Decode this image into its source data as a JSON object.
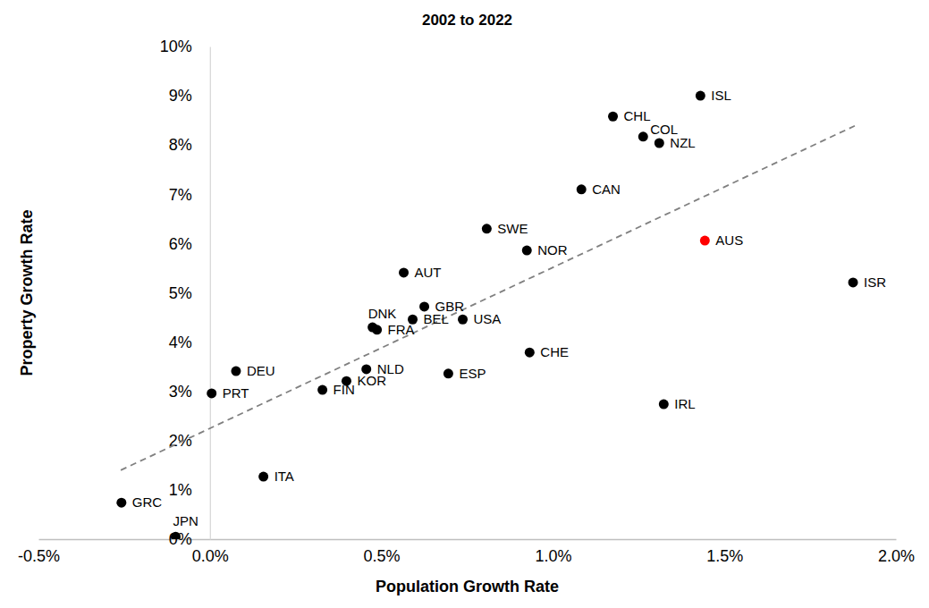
{
  "chart_data": {
    "type": "scatter",
    "title": "2002 to 2022",
    "x_label": "Population Growth Rate",
    "y_label": "Property Growth Rate",
    "labels": [
      "ISL",
      "CHL",
      "COL",
      "NZL",
      "CAN",
      "SWE",
      "NOR",
      "AUS",
      "AUT",
      "GBR",
      "DNK",
      "FRA",
      "BEL",
      "USA",
      "ISR",
      "CHE",
      "ESP",
      "NLD",
      "KOR",
      "FIN",
      "DEU",
      "PRT",
      "IRL",
      "ITA",
      "GRC",
      "JPN"
    ],
    "x": [
      1.43,
      1.175,
      1.263,
      1.31,
      1.083,
      0.807,
      0.924,
      1.443,
      0.565,
      0.625,
      0.474,
      0.487,
      0.591,
      0.737,
      1.875,
      0.932,
      0.695,
      0.456,
      0.398,
      0.328,
      0.076,
      0.005,
      1.323,
      0.156,
      -0.258,
      -0.1
    ],
    "values": [
      9.0,
      8.58,
      8.17,
      8.04,
      7.1,
      6.3,
      5.86,
      6.06,
      5.41,
      4.72,
      4.3,
      4.25,
      4.46,
      4.46,
      5.21,
      3.79,
      3.36,
      3.45,
      3.21,
      3.03,
      3.41,
      2.96,
      2.74,
      1.27,
      0.74,
      0.05
    ],
    "colors": [
      "#000000",
      "#000000",
      "#000000",
      "#000000",
      "#000000",
      "#000000",
      "#000000",
      "#ff0000",
      "#000000",
      "#000000",
      "#000000",
      "#000000",
      "#000000",
      "#000000",
      "#000000",
      "#000000",
      "#000000",
      "#000000",
      "#000000",
      "#000000",
      "#000000",
      "#000000",
      "#000000",
      "#000000",
      "#000000",
      "#000000"
    ],
    "marker": "circle",
    "trend_line": {
      "x": [
        -0.26,
        1.88
      ],
      "values": [
        1.4,
        8.39
      ],
      "color": "#808080",
      "line_style": "dashed"
    },
    "xlim": [
      -0.5,
      2.0
    ],
    "xticks": [
      {
        "value": -0.5,
        "label": "-0.5%"
      },
      {
        "value": 0,
        "label": "0.0%"
      },
      {
        "value": 0.5,
        "label": "0.5%"
      },
      {
        "value": 1.0,
        "label": "1.0%"
      },
      {
        "value": 1.5,
        "label": "1.5%"
      },
      {
        "value": 2.0,
        "label": "2.0%"
      }
    ],
    "ylim": [
      0,
      10
    ],
    "yticks": [
      {
        "value": 0,
        "label": "0%"
      },
      {
        "value": 1,
        "label": "1%"
      },
      {
        "value": 2,
        "label": "2%"
      },
      {
        "value": 3,
        "label": "3%"
      },
      {
        "value": 4,
        "label": "4%"
      },
      {
        "value": 5,
        "label": "5%"
      },
      {
        "value": 6,
        "label": "6%"
      },
      {
        "value": 7,
        "label": "7%"
      },
      {
        "value": 8,
        "label": "8%"
      },
      {
        "value": 9,
        "label": "9%"
      },
      {
        "value": 10,
        "label": "10%"
      }
    ],
    "grid": false
  }
}
